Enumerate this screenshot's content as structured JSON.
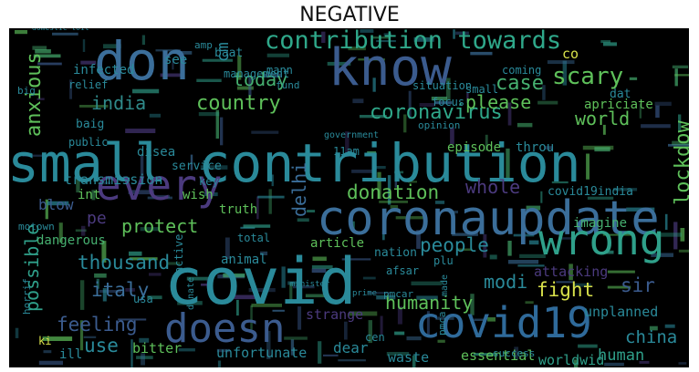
{
  "title": "NEGATIVE",
  "word_cloud": {
    "background_color": "#000000",
    "words": [
      {
        "text": "small contribution",
        "color": "#2a8a9a"
      },
      {
        "text": "covid",
        "color": "#2a8a9a"
      },
      {
        "text": "coronaupdate",
        "color": "#3b6e9a"
      },
      {
        "text": "don",
        "color": "#3b6e9a"
      },
      {
        "text": "know",
        "color": "#3b5b8e"
      },
      {
        "text": "every",
        "color": "#4b3a7e"
      },
      {
        "text": "wrong",
        "color": "#2fa08a"
      },
      {
        "text": "covid19",
        "color": "#2f6a9a"
      },
      {
        "text": "doesn",
        "color": "#3b5b8e"
      },
      {
        "text": "contribution towards",
        "color": "#2fa88a"
      },
      {
        "text": "lockdow",
        "color": "#5ec05a"
      },
      {
        "text": "scary",
        "color": "#5ec05a"
      },
      {
        "text": "anxious",
        "color": "#5ec05a"
      },
      {
        "text": "coronavirus",
        "color": "#2fa88a"
      },
      {
        "text": "country",
        "color": "#5ec05a"
      },
      {
        "text": "today",
        "color": "#46b070"
      },
      {
        "text": "case",
        "color": "#46b070"
      },
      {
        "text": "world",
        "color": "#5ec05a"
      },
      {
        "text": "please",
        "color": "#5ec05a"
      },
      {
        "text": "india",
        "color": "#2f8a8a"
      },
      {
        "text": "protect",
        "color": "#5ec05a"
      },
      {
        "text": "donation",
        "color": "#5ec05a"
      },
      {
        "text": "whole",
        "color": "#4b3a7e"
      },
      {
        "text": "delhi",
        "color": "#3b6e9a"
      },
      {
        "text": "people",
        "color": "#2a8a9a"
      },
      {
        "text": "thousand",
        "color": "#2a8a9a"
      },
      {
        "text": "italy",
        "color": "#3b6e9a"
      },
      {
        "text": "possible",
        "color": "#2fa08a"
      },
      {
        "text": "humanity",
        "color": "#5ec05a"
      },
      {
        "text": "modi",
        "color": "#2a8a9a"
      },
      {
        "text": "fight",
        "color": "#d8e14a"
      },
      {
        "text": "sir",
        "color": "#3b5b8e"
      },
      {
        "text": "feeling",
        "color": "#3b5b8e"
      },
      {
        "text": "use",
        "color": "#2a8a9a"
      },
      {
        "text": "china",
        "color": "#2a8a9a"
      },
      {
        "text": "dear",
        "color": "#2a8a9a"
      },
      {
        "text": "human",
        "color": "#2fa08a"
      },
      {
        "text": "cm",
        "color": "#2a8a9a"
      },
      {
        "text": "transmission",
        "color": "#2a8a9a"
      },
      {
        "text": "pe",
        "color": "#4b3a7e"
      },
      {
        "text": "strange",
        "color": "#4b3a7e"
      },
      {
        "text": "unfortunate",
        "color": "#2a8a9a"
      },
      {
        "text": "bitter",
        "color": "#5ec05a"
      },
      {
        "text": "waste",
        "color": "#2a8a9a"
      },
      {
        "text": "essential",
        "color": "#5ec05a"
      },
      {
        "text": "worldwid",
        "color": "#2fa08a"
      },
      {
        "text": "unplanned",
        "color": "#2a8a9a"
      },
      {
        "text": "dangerous",
        "color": "#46b070"
      },
      {
        "text": "article",
        "color": "#5ec05a"
      },
      {
        "text": "attacking",
        "color": "#4b3a7e"
      },
      {
        "text": "imagine",
        "color": "#46b070"
      },
      {
        "text": "covid19india",
        "color": "#2a8a9a"
      },
      {
        "text": "truth",
        "color": "#5ec05a"
      },
      {
        "text": "wish",
        "color": "#5ec05a"
      },
      {
        "text": "key",
        "color": "#2a8a9a"
      },
      {
        "text": "infected",
        "color": "#2a8a9a"
      },
      {
        "text": "management",
        "color": "#2a8a9a"
      },
      {
        "text": "relief",
        "color": "#2a8a9a"
      },
      {
        "text": "see",
        "color": "#2a8a9a"
      },
      {
        "text": "baat",
        "color": "#2a8a9a"
      },
      {
        "text": "situation",
        "color": "#2a8a9a"
      },
      {
        "text": "coming",
        "color": "#2a8a9a"
      },
      {
        "text": "co",
        "color": "#d8e14a"
      },
      {
        "text": "dat",
        "color": "#2a8a9a"
      },
      {
        "text": "apriciate",
        "color": "#5ec05a"
      },
      {
        "text": "small",
        "color": "#2a8a9a"
      },
      {
        "text": "focus",
        "color": "#2a8a9a"
      },
      {
        "text": "opinion",
        "color": "#2a8a9a"
      },
      {
        "text": "episode",
        "color": "#5ec05a"
      },
      {
        "text": "throu",
        "color": "#2a8a9a"
      },
      {
        "text": "service",
        "color": "#2a8a9a"
      },
      {
        "text": "disea",
        "color": "#2a8a9a"
      },
      {
        "text": "11am",
        "color": "#2a8a9a"
      },
      {
        "text": "fund",
        "color": "#2a8a9a"
      },
      {
        "text": "mann",
        "color": "#2a8a9a"
      },
      {
        "text": "baig",
        "color": "#2a8a9a"
      },
      {
        "text": "public",
        "color": "#2a8a9a"
      },
      {
        "text": "int",
        "color": "#5ec05a"
      },
      {
        "text": "blow",
        "color": "#3b5b8e"
      },
      {
        "text": "motown",
        "color": "#2a8a9a"
      },
      {
        "text": "horrif",
        "color": "#2a8a9a"
      },
      {
        "text": "ki",
        "color": "#d8e14a"
      },
      {
        "text": "ill",
        "color": "#2a8a9a"
      },
      {
        "text": "usa",
        "color": "#2a8a9a"
      },
      {
        "text": "nation",
        "color": "#2a8a9a"
      },
      {
        "text": "afsar",
        "color": "#2a8a9a"
      },
      {
        "text": "pmcar",
        "color": "#2a8a9a"
      },
      {
        "text": "plu",
        "color": "#2a8a9a"
      },
      {
        "text": "made",
        "color": "#2a8a9a"
      },
      {
        "text": "pmca",
        "color": "#2a8a9a"
      },
      {
        "text": "success",
        "color": "#2a8a9a"
      },
      {
        "text": "cen",
        "color": "#2a8a9a"
      },
      {
        "text": "total",
        "color": "#2a8a9a"
      },
      {
        "text": "animal",
        "color": "#2a8a9a"
      },
      {
        "text": "active",
        "color": "#2a8a9a"
      },
      {
        "text": "donate",
        "color": "#2a8a9a"
      },
      {
        "text": "big",
        "color": "#2a8a9a"
      },
      {
        "text": "amp",
        "color": "#2a8a9a"
      },
      {
        "text": "government",
        "color": "#2a8a9a"
      },
      {
        "text": "minister",
        "color": "#2a8a9a"
      },
      {
        "text": "prime",
        "color": "#2a8a9a"
      },
      {
        "text": "domestic toil",
        "color": "#2a8a9a"
      }
    ]
  }
}
